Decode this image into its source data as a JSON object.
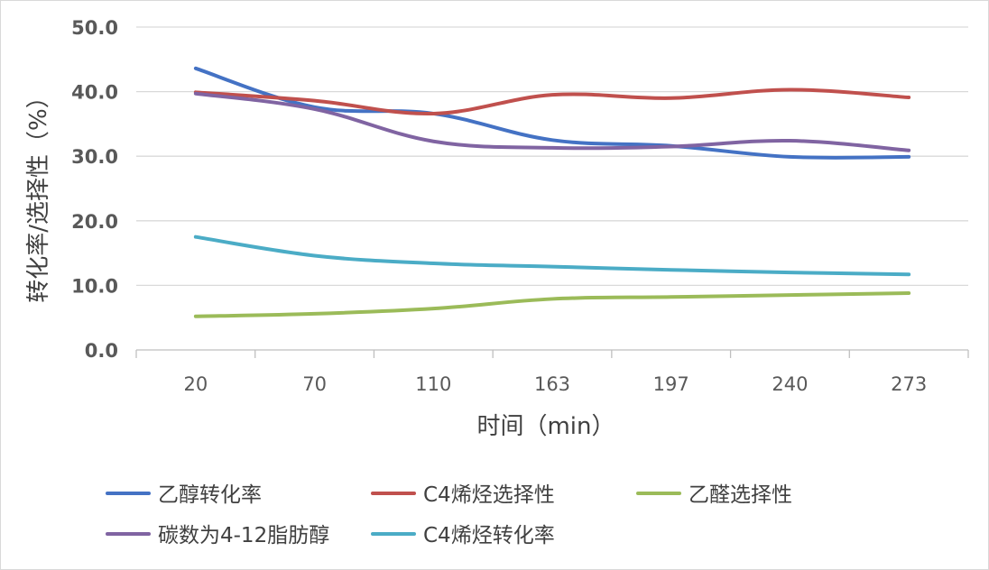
{
  "chart_data": {
    "type": "line",
    "categories": [
      "20",
      "70",
      "110",
      "163",
      "197",
      "240",
      "273"
    ],
    "xlabel": "时间（min）",
    "ylabel": "转化率/选择性（%）",
    "ylim": [
      0,
      50
    ],
    "yticks": [
      "0.0",
      "10.0",
      "20.0",
      "30.0",
      "40.0",
      "50.0"
    ],
    "ytick_values": [
      0,
      10,
      20,
      30,
      40,
      50
    ],
    "grid": true,
    "legend_position": "bottom",
    "smooth": true,
    "series": [
      {
        "name": "乙醇转化率",
        "color": "#4472C4",
        "values": [
          43.6,
          37.6,
          36.6,
          32.5,
          31.6,
          29.9,
          29.9
        ]
      },
      {
        "name": "C4烯烃选择性",
        "color": "#C0504D",
        "values": [
          39.9,
          38.6,
          36.6,
          39.5,
          39.0,
          40.3,
          39.1
        ]
      },
      {
        "name": "乙醛选择性",
        "color": "#9BBB59",
        "values": [
          5.2,
          5.6,
          6.4,
          7.9,
          8.2,
          8.5,
          8.8
        ]
      },
      {
        "name": "碳数为4-12脂肪醇",
        "color": "#8064A2",
        "values": [
          39.7,
          37.3,
          32.3,
          31.3,
          31.5,
          32.4,
          30.9
        ]
      },
      {
        "name": "C4烯烃转化率",
        "color": "#4BACC6",
        "values": [
          17.5,
          14.6,
          13.4,
          12.9,
          12.4,
          12.0,
          11.7
        ]
      }
    ]
  }
}
